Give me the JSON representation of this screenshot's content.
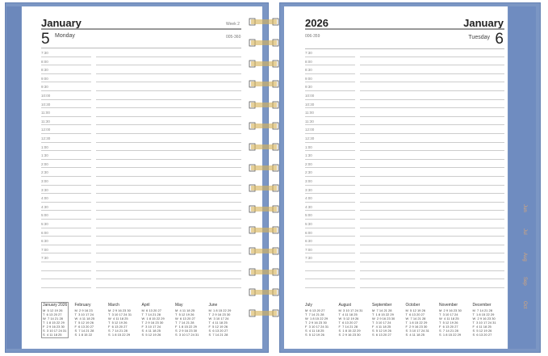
{
  "left_page": {
    "month": "January",
    "week": "Week 2",
    "day_number": "5",
    "weekday": "Monday",
    "day_of_year": "005-360",
    "times": [
      "7:30",
      "8:00",
      "8:30",
      "9:00",
      "9:30",
      "10:00",
      "10:30",
      "11:00",
      "11:30",
      "12:00",
      "12:30",
      "1:00",
      "1:30",
      "2:00",
      "2:30",
      "3:00",
      "3:30",
      "4:00",
      "4:30",
      "5:00",
      "5:30",
      "6:00",
      "6:30",
      "7:00",
      "7:30"
    ],
    "blank_lines": 3,
    "calendars": [
      {
        "name": "January 2026",
        "rows": [
          "M  5 12 19 26",
          "T  6 13 20 27",
          "W  7 14 21 28",
          "T  1 8 15 22 29",
          "F  2 9 16 23 30",
          "S  3 10 17 24 31",
          "S  4 11 18 25"
        ]
      },
      {
        "name": "February",
        "rows": [
          "M  2 9 16 23",
          "T  3 10 17 24",
          "W  4 11 18 25",
          "T  5 12 19 26",
          "F  6 13 20 27",
          "S  7 14 21 28",
          "S  1 8 15 22"
        ]
      },
      {
        "name": "March",
        "rows": [
          "M  2 9 16 23 30",
          "T  3 10 17 24 31",
          "W  4 11 18 25",
          "T  5 12 19 26",
          "F  6 13 20 27",
          "S  7 14 21 28",
          "S  1 8 15 22 29"
        ]
      },
      {
        "name": "April",
        "rows": [
          "M  6 13 20 27",
          "T  7 14 21 28",
          "W  1 8 15 22 29",
          "T  2 9 16 23 30",
          "F  3 10 17 24",
          "S  4 11 18 25",
          "S  5 12 19 26"
        ]
      },
      {
        "name": "May",
        "rows": [
          "M  4 11 18 25",
          "T  5 12 19 26",
          "W  6 13 20 27",
          "T  7 14 21 28",
          "F  1 8 15 22 29",
          "S  2 9 16 23 30",
          "S  3 10 17 24 31"
        ]
      },
      {
        "name": "June",
        "rows": [
          "M  1 8 15 22 29",
          "T  2 9 16 23 30",
          "W  3 10 17 24",
          "T  4 11 18 25",
          "F  5 12 19 26",
          "S  6 13 20 27",
          "S  7 14 21 28"
        ]
      }
    ]
  },
  "right_page": {
    "year": "2026",
    "month": "January",
    "day_number": "6",
    "weekday": "Tuesday",
    "day_of_year": "006-359",
    "times": [
      "7:30",
      "8:00",
      "8:30",
      "9:00",
      "9:30",
      "10:00",
      "10:30",
      "11:00",
      "11:30",
      "12:00",
      "12:30",
      "1:00",
      "1:30",
      "2:00",
      "2:30",
      "3:00",
      "3:30",
      "4:00",
      "4:30",
      "5:00",
      "5:30",
      "6:00",
      "6:30",
      "7:00",
      "7:30"
    ],
    "blank_lines": 3,
    "calendars": [
      {
        "name": "July",
        "rows": [
          "M  6 13 20 27",
          "T  7 14 21 28",
          "W  1 8 15 22 29",
          "T  2 9 16 23 30",
          "F  3 10 17 24 31",
          "S  4 11 18 25",
          "S  5 12 19 26"
        ]
      },
      {
        "name": "August",
        "rows": [
          "M  3 10 17 24 31",
          "T  4 11 18 25",
          "W  5 12 19 26",
          "T  6 13 20 27",
          "F  7 14 21 28",
          "S  1 8 15 22 29",
          "S  2 9 16 23 30"
        ]
      },
      {
        "name": "September",
        "rows": [
          "M  7 14 21 28",
          "T  1 8 15 22 29",
          "W  2 9 16 23 30",
          "T  3 10 17 24",
          "F  4 11 18 25",
          "S  5 12 19 26",
          "S  6 13 20 27"
        ]
      },
      {
        "name": "October",
        "rows": [
          "M  5 12 19 26",
          "T  6 13 20 27",
          "W  7 14 21 28",
          "T  1 8 15 22 29",
          "F  2 9 16 23 30",
          "S  3 10 17 24 31",
          "S  4 11 18 25"
        ]
      },
      {
        "name": "November",
        "rows": [
          "M  2 9 16 23 30",
          "T  3 10 17 24",
          "W  4 11 18 25",
          "T  5 12 19 26",
          "F  6 13 20 27",
          "S  7 14 21 28",
          "S  1 8 15 22 29"
        ]
      },
      {
        "name": "December",
        "rows": [
          "M  7 14 21 28",
          "T  1 8 15 22 29",
          "W  2 9 16 23 30",
          "T  3 10 17 24 31",
          "F  4 11 18 25",
          "S  5 12 19 26",
          "S  6 13 20 27"
        ]
      }
    ],
    "month_tabs": [
      "Jun",
      "Jul",
      "Aug",
      "Sep",
      "Oct"
    ]
  },
  "colors": {
    "cover": "#7b96c4",
    "ring": "#d6b45a",
    "tab_text": "#d9a77a"
  },
  "spiral_rings": 15
}
